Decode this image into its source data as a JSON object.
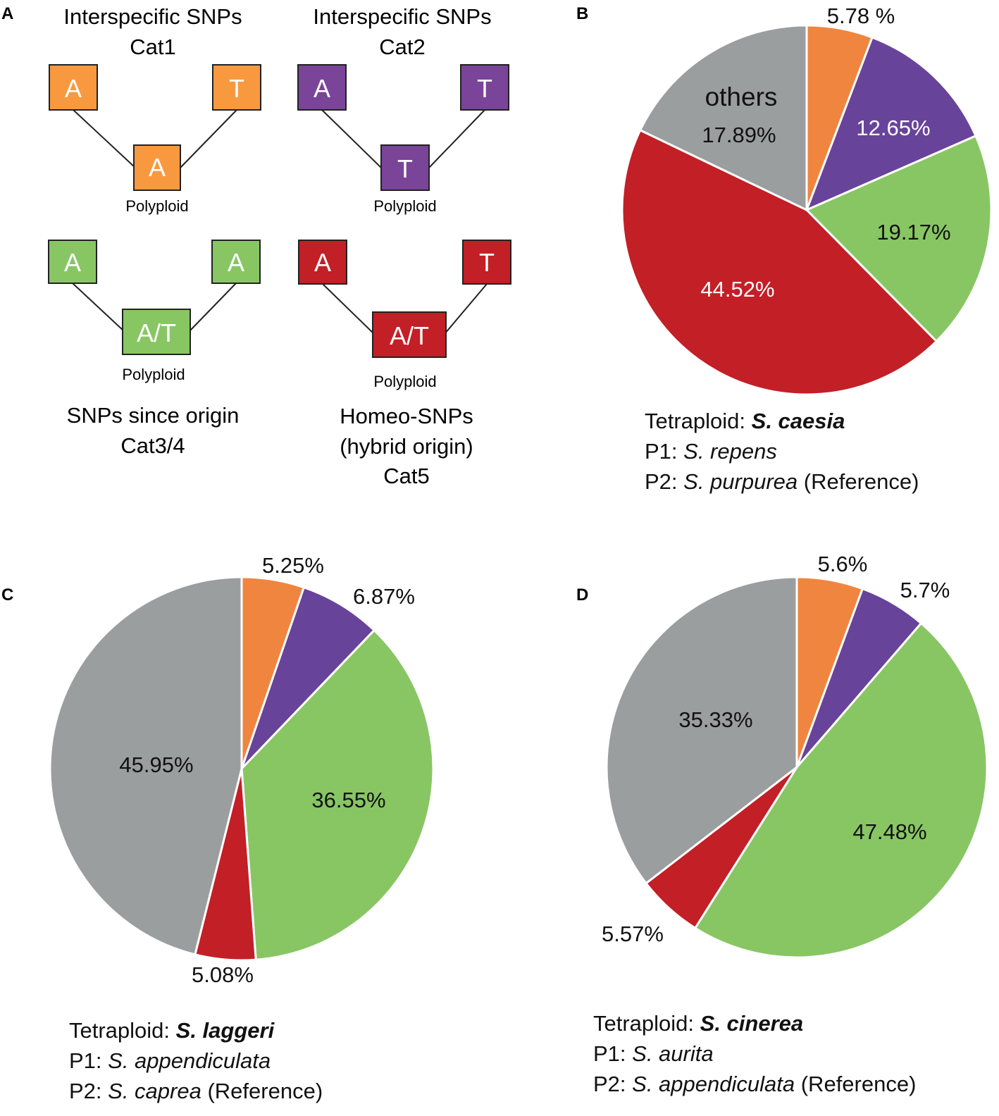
{
  "colors": {
    "cat1": "#f08540",
    "cat2": "#68439a",
    "cat34": "#88c664",
    "cat5": "#c21f27",
    "others": "#9b9e9f",
    "diagram_cat1": "#f8993f",
    "diagram_cat2": "#7a4499",
    "diagram_cat34": "#88c664",
    "diagram_cat5": "#c21f27"
  },
  "panel_a": {
    "label": "A",
    "cat1": {
      "title1": "Interspecific SNPs",
      "title2": "Cat1",
      "left": "A",
      "right": "T",
      "child": "A",
      "child_label": "Polyploid"
    },
    "cat2": {
      "title1": "Interspecific SNPs",
      "title2": "Cat2",
      "left": "A",
      "right": "T",
      "child": "T",
      "child_label": "Polyploid"
    },
    "cat34": {
      "left": "A",
      "right": "A",
      "child": "A/T",
      "child_label": "Polyploid",
      "title1": "SNPs since origin",
      "title2": "Cat3/4"
    },
    "cat5": {
      "left": "A",
      "right": "T",
      "child": "A/T",
      "child_label": "Polyploid",
      "title1": "Homeo-SNPs",
      "title2": "(hybrid origin)",
      "title3": "Cat5"
    }
  },
  "chart_data": [
    {
      "type": "pie",
      "panel_label": "B",
      "slices": [
        {
          "category": "Cat1",
          "value": 5.78,
          "label": "5.78 %"
        },
        {
          "category": "Cat2",
          "value": 12.65,
          "label": "12.65%"
        },
        {
          "category": "Cat3/4",
          "value": 19.17,
          "label": "19.17%"
        },
        {
          "category": "Cat5",
          "value": 44.52,
          "label": "44.52%"
        },
        {
          "category": "others",
          "value": 17.89,
          "label": "17.89%",
          "name_label": "others"
        }
      ],
      "caption": {
        "line1_prefix": "Tetraploid: ",
        "line1_species": "S. caesia",
        "line2_prefix": "P1: ",
        "line2_species": "S. repens",
        "line3_prefix": "P2: ",
        "line3_species": "S. purpurea",
        "line3_suffix": " (Reference)"
      }
    },
    {
      "type": "pie",
      "panel_label": "C",
      "slices": [
        {
          "category": "Cat1",
          "value": 5.25,
          "label": "5.25%"
        },
        {
          "category": "Cat2",
          "value": 6.87,
          "label": "6.87%"
        },
        {
          "category": "Cat3/4",
          "value": 36.55,
          "label": "36.55%"
        },
        {
          "category": "Cat5",
          "value": 5.08,
          "label": "5.08%"
        },
        {
          "category": "others",
          "value": 45.95,
          "label": "45.95%"
        }
      ],
      "caption": {
        "line1_prefix": "Tetraploid: ",
        "line1_species": "S. laggeri",
        "line2_prefix": "P1: ",
        "line2_species": "S. appendiculata",
        "line3_prefix": "P2: ",
        "line3_species": "S. caprea",
        "line3_suffix": " (Reference)"
      }
    },
    {
      "type": "pie",
      "panel_label": "D",
      "slices": [
        {
          "category": "Cat1",
          "value": 5.6,
          "label": "5.6%"
        },
        {
          "category": "Cat2",
          "value": 5.7,
          "label": "5.7%"
        },
        {
          "category": "Cat3/4",
          "value": 47.48,
          "label": "47.48%"
        },
        {
          "category": "Cat5",
          "value": 5.57,
          "label": "5.57%"
        },
        {
          "category": "others",
          "value": 35.33,
          "label": "35.33%"
        }
      ],
      "caption": {
        "line1_prefix": "Tetraploid: ",
        "line1_species": "S. cinerea",
        "line2_prefix": "P1: ",
        "line2_species": "S. aurita",
        "line3_prefix": "P2: ",
        "line3_species": "S. appendiculata",
        "line3_suffix": " (Reference)"
      }
    }
  ]
}
